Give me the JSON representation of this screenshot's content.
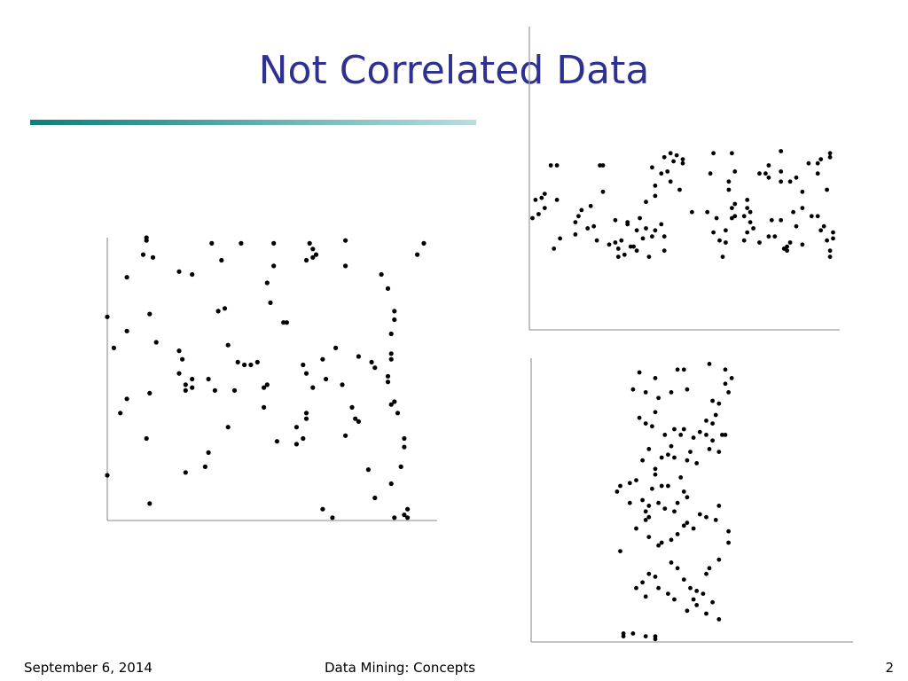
{
  "slide": {
    "title": "Not Correlated Data",
    "accent_colors": [
      "#0e7e7e",
      "#b9dede"
    ],
    "title_color": "#2e3192"
  },
  "footer": {
    "date": "September 6, 2014",
    "center": "Data Mining: Concepts",
    "page": "2"
  },
  "chart_data": [
    {
      "type": "scatter",
      "title": "",
      "xlabel": "",
      "ylabel": "",
      "xlim": [
        0,
        100
      ],
      "ylim": [
        0,
        100
      ],
      "grid": false,
      "points": [
        [
          0,
          72
        ],
        [
          0,
          16
        ],
        [
          2,
          61
        ],
        [
          4,
          38
        ],
        [
          6,
          86
        ],
        [
          6,
          43
        ],
        [
          6,
          67
        ],
        [
          12,
          99
        ],
        [
          12,
          100
        ],
        [
          11,
          94
        ],
        [
          14,
          93
        ],
        [
          13,
          73
        ],
        [
          15,
          63
        ],
        [
          13,
          45
        ],
        [
          12,
          29
        ],
        [
          13,
          6
        ],
        [
          22,
          88
        ],
        [
          26,
          87
        ],
        [
          22,
          60
        ],
        [
          23,
          57
        ],
        [
          22,
          52
        ],
        [
          24,
          48
        ],
        [
          26,
          47
        ],
        [
          26,
          50
        ],
        [
          24,
          46
        ],
        [
          24,
          17
        ],
        [
          30,
          19
        ],
        [
          31,
          24
        ],
        [
          31,
          50
        ],
        [
          33,
          46
        ],
        [
          34,
          74
        ],
        [
          36,
          75
        ],
        [
          32,
          98
        ],
        [
          35,
          92
        ],
        [
          37,
          62
        ],
        [
          39,
          46
        ],
        [
          37,
          33
        ],
        [
          41,
          98
        ],
        [
          40,
          56
        ],
        [
          42,
          55
        ],
        [
          44,
          55
        ],
        [
          46,
          56
        ],
        [
          48,
          47
        ],
        [
          49,
          48
        ],
        [
          48,
          40
        ],
        [
          49,
          84
        ],
        [
          51,
          98
        ],
        [
          51,
          90
        ],
        [
          50,
          77
        ],
        [
          52,
          28
        ],
        [
          54,
          70
        ],
        [
          55,
          70
        ],
        [
          58,
          33
        ],
        [
          58,
          27
        ],
        [
          60,
          29
        ],
        [
          61,
          38
        ],
        [
          61,
          92
        ],
        [
          63,
          93
        ],
        [
          63,
          96
        ],
        [
          62,
          98
        ],
        [
          60,
          55
        ],
        [
          61,
          52
        ],
        [
          61,
          36
        ],
        [
          63,
          47
        ],
        [
          64,
          94
        ],
        [
          66,
          57
        ],
        [
          67,
          50
        ],
        [
          73,
          99
        ],
        [
          72,
          48
        ],
        [
          70,
          61
        ],
        [
          73,
          30
        ],
        [
          73,
          90
        ],
        [
          75,
          40
        ],
        [
          76,
          36
        ],
        [
          77,
          35
        ],
        [
          77,
          58
        ],
        [
          81,
          56
        ],
        [
          82,
          54
        ],
        [
          80,
          18
        ],
        [
          82,
          8
        ],
        [
          84,
          87
        ],
        [
          87,
          66
        ],
        [
          87,
          59
        ],
        [
          88,
          74
        ],
        [
          88,
          71
        ],
        [
          87,
          57
        ],
        [
          86,
          51
        ],
        [
          87,
          41
        ],
        [
          88,
          42
        ],
        [
          89,
          38
        ],
        [
          86,
          49
        ],
        [
          86,
          82
        ],
        [
          87,
          13
        ],
        [
          91,
          29
        ],
        [
          91,
          26
        ],
        [
          90,
          19
        ],
        [
          91,
          2
        ],
        [
          92,
          4
        ],
        [
          95,
          94
        ],
        [
          97,
          98
        ],
        [
          66,
          4
        ],
        [
          69,
          1
        ],
        [
          88,
          1
        ],
        [
          92,
          1
        ]
      ]
    },
    {
      "type": "scatter",
      "title": "",
      "xlabel": "",
      "ylabel": "",
      "xlim": [
        0,
        100
      ],
      "ylim": [
        0,
        100
      ],
      "grid": false,
      "points": [
        [
          1,
          55
        ],
        [
          2,
          64
        ],
        [
          4,
          65
        ],
        [
          3,
          57
        ],
        [
          5,
          60
        ],
        [
          5,
          67
        ],
        [
          7,
          81
        ],
        [
          9,
          81
        ],
        [
          8,
          40
        ],
        [
          9,
          64
        ],
        [
          10,
          45
        ],
        [
          15,
          53
        ],
        [
          16,
          56
        ],
        [
          15,
          47
        ],
        [
          17,
          59
        ],
        [
          19,
          50
        ],
        [
          20,
          61
        ],
        [
          21,
          51
        ],
        [
          23,
          81
        ],
        [
          22,
          44
        ],
        [
          24,
          68
        ],
        [
          24,
          81
        ],
        [
          26,
          42
        ],
        [
          28,
          54
        ],
        [
          28,
          43
        ],
        [
          29,
          36
        ],
        [
          30,
          44
        ],
        [
          31,
          37
        ],
        [
          32,
          53
        ],
        [
          29,
          40
        ],
        [
          32,
          52
        ],
        [
          33,
          41
        ],
        [
          34,
          41
        ],
        [
          35,
          39
        ],
        [
          35,
          49
        ],
        [
          36,
          55
        ],
        [
          37,
          45
        ],
        [
          38,
          50
        ],
        [
          40,
          46
        ],
        [
          41,
          66
        ],
        [
          41,
          49
        ],
        [
          39,
          36
        ],
        [
          38,
          63
        ],
        [
          40,
          80
        ],
        [
          41,
          71
        ],
        [
          44,
          46
        ],
        [
          43,
          52
        ],
        [
          43,
          77
        ],
        [
          44,
          39
        ],
        [
          45,
          78
        ],
        [
          46,
          73
        ],
        [
          44,
          85
        ],
        [
          46,
          87
        ],
        [
          47,
          83
        ],
        [
          48,
          86
        ],
        [
          50,
          84
        ],
        [
          50,
          82
        ],
        [
          49,
          69
        ],
        [
          53,
          58
        ],
        [
          59,
          77
        ],
        [
          58,
          58
        ],
        [
          60,
          87
        ],
        [
          60,
          48
        ],
        [
          61,
          55
        ],
        [
          63,
          36
        ],
        [
          62,
          44
        ],
        [
          64,
          43
        ],
        [
          64,
          49
        ],
        [
          65,
          73
        ],
        [
          65,
          69
        ],
        [
          66,
          60
        ],
        [
          67,
          78
        ],
        [
          66,
          87
        ],
        [
          67,
          62
        ],
        [
          66,
          55
        ],
        [
          67,
          56
        ],
        [
          70,
          44
        ],
        [
          71,
          48
        ],
        [
          71,
          60
        ],
        [
          70,
          56
        ],
        [
          72,
          53
        ],
        [
          71,
          64
        ],
        [
          72,
          58
        ],
        [
          73,
          50
        ],
        [
          75,
          77
        ],
        [
          75,
          43
        ],
        [
          77,
          77
        ],
        [
          78,
          46
        ],
        [
          78,
          75
        ],
        [
          78,
          81
        ],
        [
          79,
          54
        ],
        [
          80,
          46
        ],
        [
          82,
          54
        ],
        [
          82,
          78
        ],
        [
          82,
          73
        ],
        [
          83,
          40
        ],
        [
          82,
          88
        ],
        [
          85,
          73
        ],
        [
          84,
          41
        ],
        [
          84,
          39
        ],
        [
          85,
          43
        ],
        [
          86,
          58
        ],
        [
          87,
          51
        ],
        [
          87,
          75
        ],
        [
          89,
          42
        ],
        [
          89,
          60
        ],
        [
          89,
          68
        ],
        [
          91,
          82
        ],
        [
          92,
          56
        ],
        [
          94,
          56
        ],
        [
          94,
          77
        ],
        [
          95,
          84
        ],
        [
          94,
          82
        ],
        [
          96,
          51
        ],
        [
          95,
          49
        ],
        [
          97,
          44
        ],
        [
          97,
          69
        ],
        [
          98,
          87
        ],
        [
          98,
          85
        ],
        [
          99,
          48
        ],
        [
          98,
          39
        ],
        [
          99,
          45
        ],
        [
          98,
          36
        ]
      ]
    },
    {
      "type": "scatter",
      "title": "",
      "xlabel": "",
      "ylabel": "",
      "xlim": [
        0,
        100
      ],
      "ylim": [
        0,
        100
      ],
      "grid": false,
      "points": [
        [
          34,
          95
        ],
        [
          46,
          96
        ],
        [
          39,
          93
        ],
        [
          48,
          96
        ],
        [
          49,
          89
        ],
        [
          56,
          98
        ],
        [
          61,
          91
        ],
        [
          63,
          93
        ],
        [
          61,
          96
        ],
        [
          62,
          88
        ],
        [
          36,
          88
        ],
        [
          40,
          86
        ],
        [
          44,
          88
        ],
        [
          32,
          89
        ],
        [
          34,
          79
        ],
        [
          36,
          77
        ],
        [
          38,
          76
        ],
        [
          39,
          81
        ],
        [
          42,
          73
        ],
        [
          45,
          75
        ],
        [
          48,
          75
        ],
        [
          47,
          73
        ],
        [
          51,
          72
        ],
        [
          53,
          74
        ],
        [
          55,
          73
        ],
        [
          57,
          71
        ],
        [
          55,
          78
        ],
        [
          57,
          85
        ],
        [
          58,
          80
        ],
        [
          57,
          77
        ],
        [
          59,
          84
        ],
        [
          60,
          73
        ],
        [
          61,
          73
        ],
        [
          59,
          67
        ],
        [
          56,
          68
        ],
        [
          52,
          63
        ],
        [
          50,
          67
        ],
        [
          49,
          64
        ],
        [
          45,
          65
        ],
        [
          44,
          69
        ],
        [
          43,
          66
        ],
        [
          41,
          65
        ],
        [
          39,
          61
        ],
        [
          37,
          68
        ],
        [
          35,
          64
        ],
        [
          33,
          57
        ],
        [
          31,
          56
        ],
        [
          28,
          55
        ],
        [
          27,
          53
        ],
        [
          31,
          49
        ],
        [
          35,
          50
        ],
        [
          37,
          48
        ],
        [
          36,
          46
        ],
        [
          37,
          44
        ],
        [
          40,
          49
        ],
        [
          42,
          47
        ],
        [
          45,
          46
        ],
        [
          46,
          49
        ],
        [
          48,
          53
        ],
        [
          49,
          51
        ],
        [
          47,
          58
        ],
        [
          43,
          55
        ],
        [
          41,
          55
        ],
        [
          39,
          59
        ],
        [
          38,
          54
        ],
        [
          36,
          43
        ],
        [
          33,
          40
        ],
        [
          37,
          37
        ],
        [
          40,
          34
        ],
        [
          41,
          35
        ],
        [
          44,
          36
        ],
        [
          46,
          38
        ],
        [
          48,
          41
        ],
        [
          49,
          42
        ],
        [
          51,
          40
        ],
        [
          53,
          45
        ],
        [
          55,
          44
        ],
        [
          58,
          43
        ],
        [
          59,
          48
        ],
        [
          62,
          39
        ],
        [
          62,
          35
        ],
        [
          59,
          29
        ],
        [
          56,
          26
        ],
        [
          55,
          24
        ],
        [
          54,
          17
        ],
        [
          52,
          18
        ],
        [
          51,
          15
        ],
        [
          50,
          19
        ],
        [
          48,
          22
        ],
        [
          46,
          26
        ],
        [
          44,
          28
        ],
        [
          39,
          23
        ],
        [
          37,
          24
        ],
        [
          35,
          21
        ],
        [
          33,
          19
        ],
        [
          36,
          16
        ],
        [
          40,
          19
        ],
        [
          43,
          17
        ],
        [
          45,
          15
        ],
        [
          49,
          11
        ],
        [
          52,
          13
        ],
        [
          55,
          10
        ],
        [
          57,
          14
        ],
        [
          59,
          8
        ],
        [
          28,
          32
        ],
        [
          29,
          3
        ],
        [
          29,
          2
        ],
        [
          32,
          3
        ],
        [
          36,
          2
        ],
        [
          39,
          2
        ],
        [
          39,
          1
        ]
      ]
    }
  ]
}
